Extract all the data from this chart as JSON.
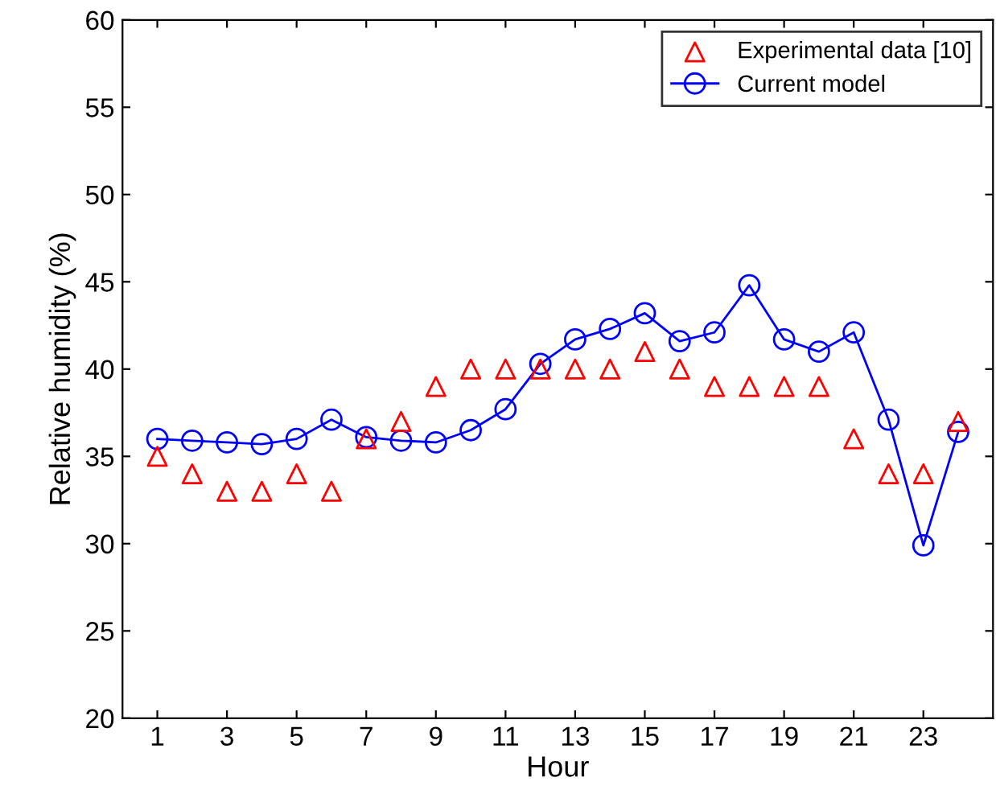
{
  "chart_data": {
    "type": "scatter",
    "xlabel": "Hour",
    "ylabel": "Relative humidity (%)",
    "x": [
      1,
      2,
      3,
      4,
      5,
      6,
      7,
      8,
      9,
      10,
      11,
      12,
      13,
      14,
      15,
      16,
      17,
      18,
      19,
      20,
      21,
      22,
      23,
      24
    ],
    "series": [
      {
        "name": "Experimental data [10]",
        "marker": "triangle",
        "color": "#ff0000",
        "values": [
          35,
          34,
          33,
          33,
          34,
          33,
          36,
          37,
          39,
          40,
          40,
          40,
          40,
          40,
          41,
          40,
          39,
          39,
          39,
          39,
          36,
          34,
          34,
          37
        ]
      },
      {
        "name": "Current model",
        "type": "line",
        "marker": "circle",
        "line_style": "solid",
        "color": "#0000ff",
        "values": [
          36,
          35.9,
          35.8,
          35.7,
          36,
          37.1,
          36.1,
          35.9,
          35.8,
          36.5,
          37.7,
          40.3,
          41.7,
          42.3,
          43.2,
          41.6,
          42.1,
          44.8,
          41.7,
          41,
          42.1,
          37.1,
          29.9,
          36.4
        ]
      }
    ],
    "xlim": [
      0,
      25
    ],
    "xticks": [
      1,
      3,
      5,
      7,
      9,
      11,
      13,
      15,
      17,
      19,
      21,
      23
    ],
    "ylim": [
      20,
      60
    ],
    "yticks": [
      20,
      25,
      30,
      35,
      40,
      45,
      50,
      55,
      60
    ],
    "grid": false,
    "legend": "top right"
  }
}
